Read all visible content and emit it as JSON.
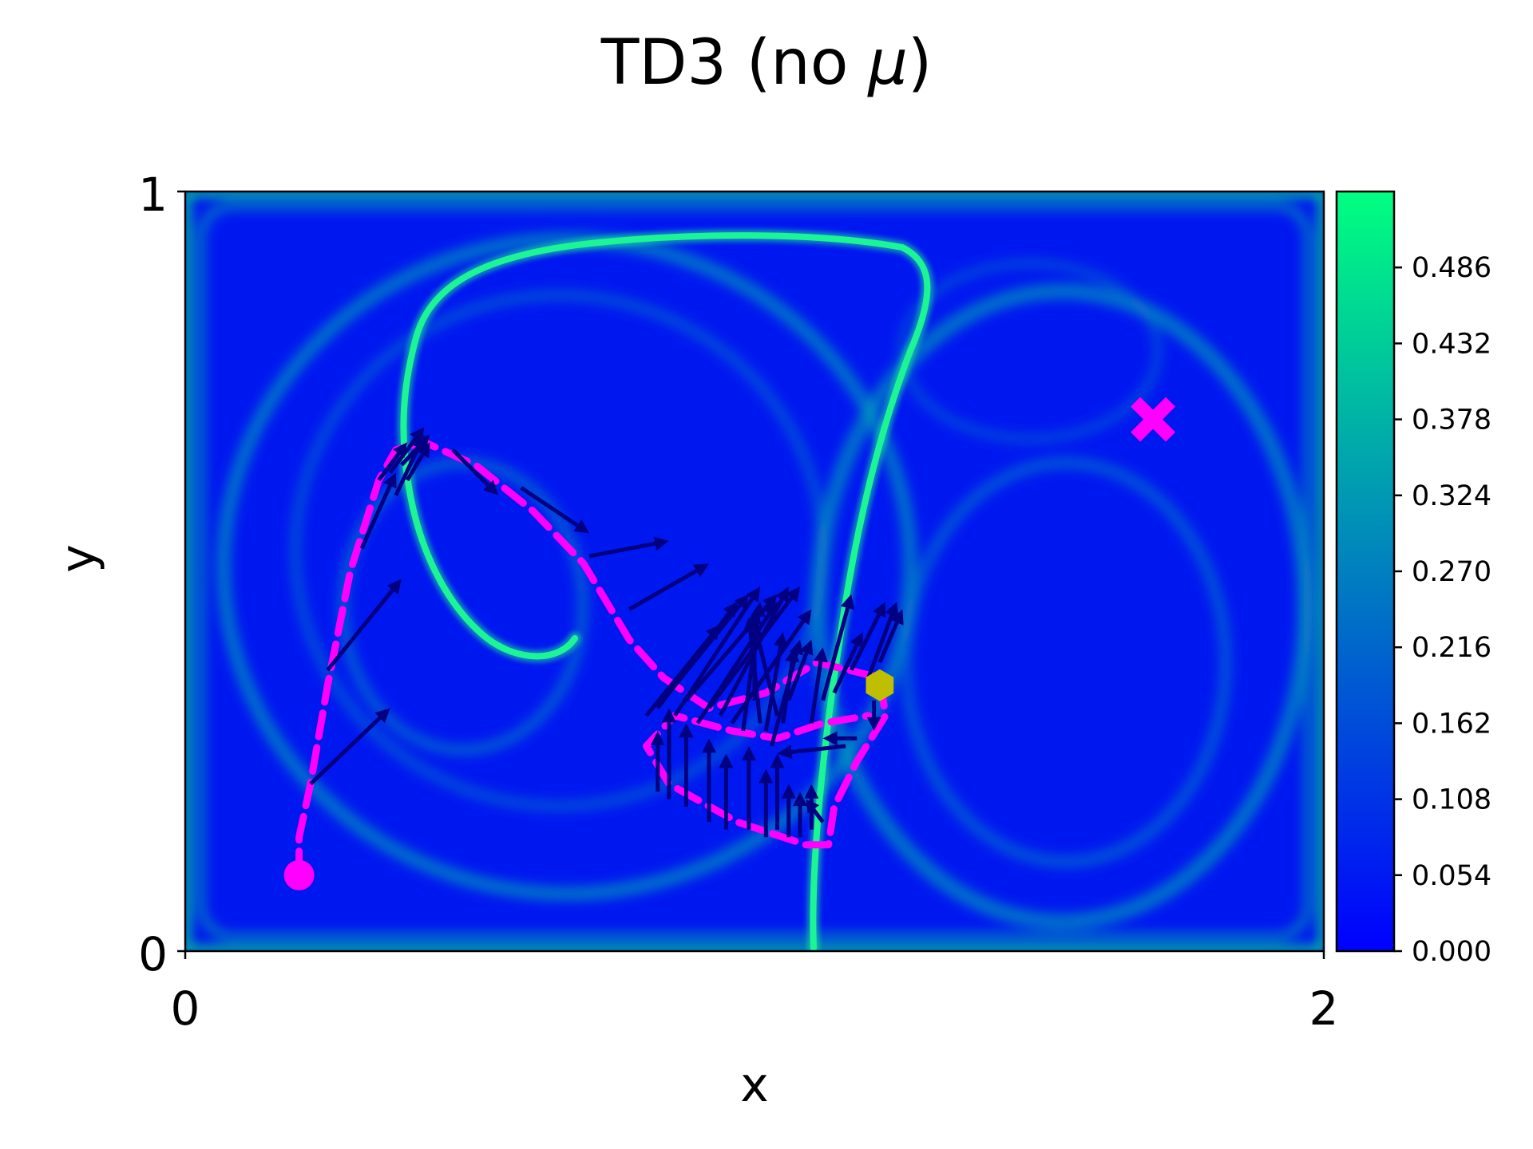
{
  "chart_data": {
    "type": "heatmap",
    "title": "TD3 (no μ)",
    "title_parts": {
      "prefix": "TD3 (no ",
      "symbol": "μ",
      "suffix": ")"
    },
    "xlabel": "x",
    "ylabel": "y",
    "xlim": [
      0,
      2
    ],
    "ylim": [
      0,
      1
    ],
    "x_ticks": [
      "0",
      "2"
    ],
    "y_ticks": [
      "0",
      "1"
    ],
    "colormap": "winter",
    "colormap_colors": [
      "#0000ff",
      "#00ff80"
    ],
    "colorbar": {
      "range": [
        0,
        0.54
      ],
      "ticks": [
        "0.000",
        "0.054",
        "0.108",
        "0.162",
        "0.216",
        "0.270",
        "0.324",
        "0.378",
        "0.432",
        "0.486"
      ]
    },
    "field": "double-gyre flow speed magnitude",
    "trajectory": {
      "style": "dashed",
      "color": "#ff00ff",
      "points": [
        [
          0.2,
          0.1
        ],
        [
          0.2,
          0.15
        ],
        [
          0.22,
          0.22
        ],
        [
          0.25,
          0.35
        ],
        [
          0.29,
          0.5
        ],
        [
          0.34,
          0.62
        ],
        [
          0.37,
          0.66
        ],
        [
          0.42,
          0.67
        ],
        [
          0.51,
          0.64
        ],
        [
          0.61,
          0.58
        ],
        [
          0.7,
          0.51
        ],
        [
          0.78,
          0.41
        ],
        [
          0.84,
          0.36
        ],
        [
          0.92,
          0.32
        ],
        [
          1.02,
          0.34
        ],
        [
          1.11,
          0.38
        ],
        [
          1.22,
          0.36
        ],
        [
          1.23,
          0.31
        ],
        [
          1.18,
          0.25
        ],
        [
          1.14,
          0.19
        ],
        [
          1.13,
          0.14
        ],
        [
          1.09,
          0.14
        ],
        [
          0.97,
          0.17
        ],
        [
          0.85,
          0.22
        ],
        [
          0.81,
          0.27
        ],
        [
          0.86,
          0.31
        ],
        [
          0.96,
          0.29
        ],
        [
          1.04,
          0.28
        ],
        [
          1.12,
          0.3
        ],
        [
          1.2,
          0.31
        ]
      ]
    },
    "start": {
      "x": 0.2,
      "y": 0.1,
      "color": "#ff00ff",
      "marker": "circle"
    },
    "goal": {
      "x": 1.7,
      "y": 0.7,
      "color": "#ff00ff",
      "marker": "x"
    },
    "current": {
      "x": 1.22,
      "y": 0.35,
      "color": "#bfbf00",
      "marker": "hexagon"
    },
    "arrows": {
      "color": "#000080",
      "items": [
        [
          0.22,
          0.22,
          0.14,
          0.1
        ],
        [
          0.25,
          0.37,
          0.13,
          0.12
        ],
        [
          0.31,
          0.53,
          0.06,
          0.1
        ],
        [
          0.34,
          0.62,
          0.05,
          0.05
        ],
        [
          0.36,
          0.63,
          0.06,
          0.06
        ],
        [
          0.38,
          0.64,
          0.05,
          0.04
        ],
        [
          0.37,
          0.6,
          0.05,
          0.08
        ],
        [
          0.39,
          0.62,
          0.04,
          0.05
        ],
        [
          0.47,
          0.66,
          0.08,
          -0.06
        ],
        [
          0.59,
          0.61,
          0.12,
          -0.06
        ],
        [
          0.71,
          0.52,
          0.14,
          0.02
        ],
        [
          0.78,
          0.45,
          0.14,
          0.06
        ],
        [
          0.81,
          0.31,
          0.13,
          0.12
        ],
        [
          0.83,
          0.32,
          0.14,
          0.14
        ],
        [
          0.85,
          0.34,
          0.14,
          0.13
        ],
        [
          0.86,
          0.31,
          0.15,
          0.17
        ],
        [
          0.88,
          0.33,
          0.16,
          0.14
        ],
        [
          0.9,
          0.3,
          0.14,
          0.16
        ],
        [
          0.92,
          0.32,
          0.16,
          0.16
        ],
        [
          0.94,
          0.31,
          0.12,
          0.17
        ],
        [
          0.96,
          0.3,
          0.14,
          0.15
        ],
        [
          0.98,
          0.29,
          0.03,
          0.17
        ],
        [
          1.0,
          0.33,
          0.0,
          0.12
        ],
        [
          1.01,
          0.3,
          -0.02,
          0.14
        ],
        [
          1.02,
          0.29,
          0.03,
          0.13
        ],
        [
          1.04,
          0.31,
          -0.04,
          0.12
        ],
        [
          1.05,
          0.3,
          0.02,
          0.1
        ],
        [
          1.03,
          0.27,
          0.05,
          0.14
        ],
        [
          1.06,
          0.33,
          0.04,
          0.08
        ],
        [
          0.83,
          0.21,
          0.0,
          0.08
        ],
        [
          0.85,
          0.2,
          0.0,
          0.12
        ],
        [
          0.88,
          0.19,
          0.0,
          0.11
        ],
        [
          0.92,
          0.17,
          0.0,
          0.11
        ],
        [
          0.95,
          0.16,
          0.0,
          0.1
        ],
        [
          0.99,
          0.16,
          0.0,
          0.11
        ],
        [
          1.02,
          0.15,
          0.0,
          0.09
        ],
        [
          1.04,
          0.16,
          0.0,
          0.1
        ],
        [
          1.06,
          0.15,
          0.0,
          0.07
        ],
        [
          1.08,
          0.15,
          0.0,
          0.06
        ],
        [
          1.1,
          0.16,
          0.0,
          0.06
        ],
        [
          1.12,
          0.17,
          -0.03,
          0.03
        ],
        [
          1.16,
          0.27,
          -0.12,
          -0.01
        ],
        [
          1.18,
          0.28,
          -0.06,
          0.0
        ],
        [
          1.1,
          0.3,
          0.02,
          0.1
        ],
        [
          1.12,
          0.33,
          0.05,
          0.14
        ],
        [
          1.14,
          0.34,
          0.05,
          0.08
        ],
        [
          1.17,
          0.37,
          0.06,
          0.09
        ],
        [
          1.2,
          0.36,
          0.05,
          0.1
        ],
        [
          1.22,
          0.38,
          0.04,
          0.07
        ],
        [
          1.21,
          0.33,
          0.0,
          -0.04
        ]
      ]
    }
  }
}
